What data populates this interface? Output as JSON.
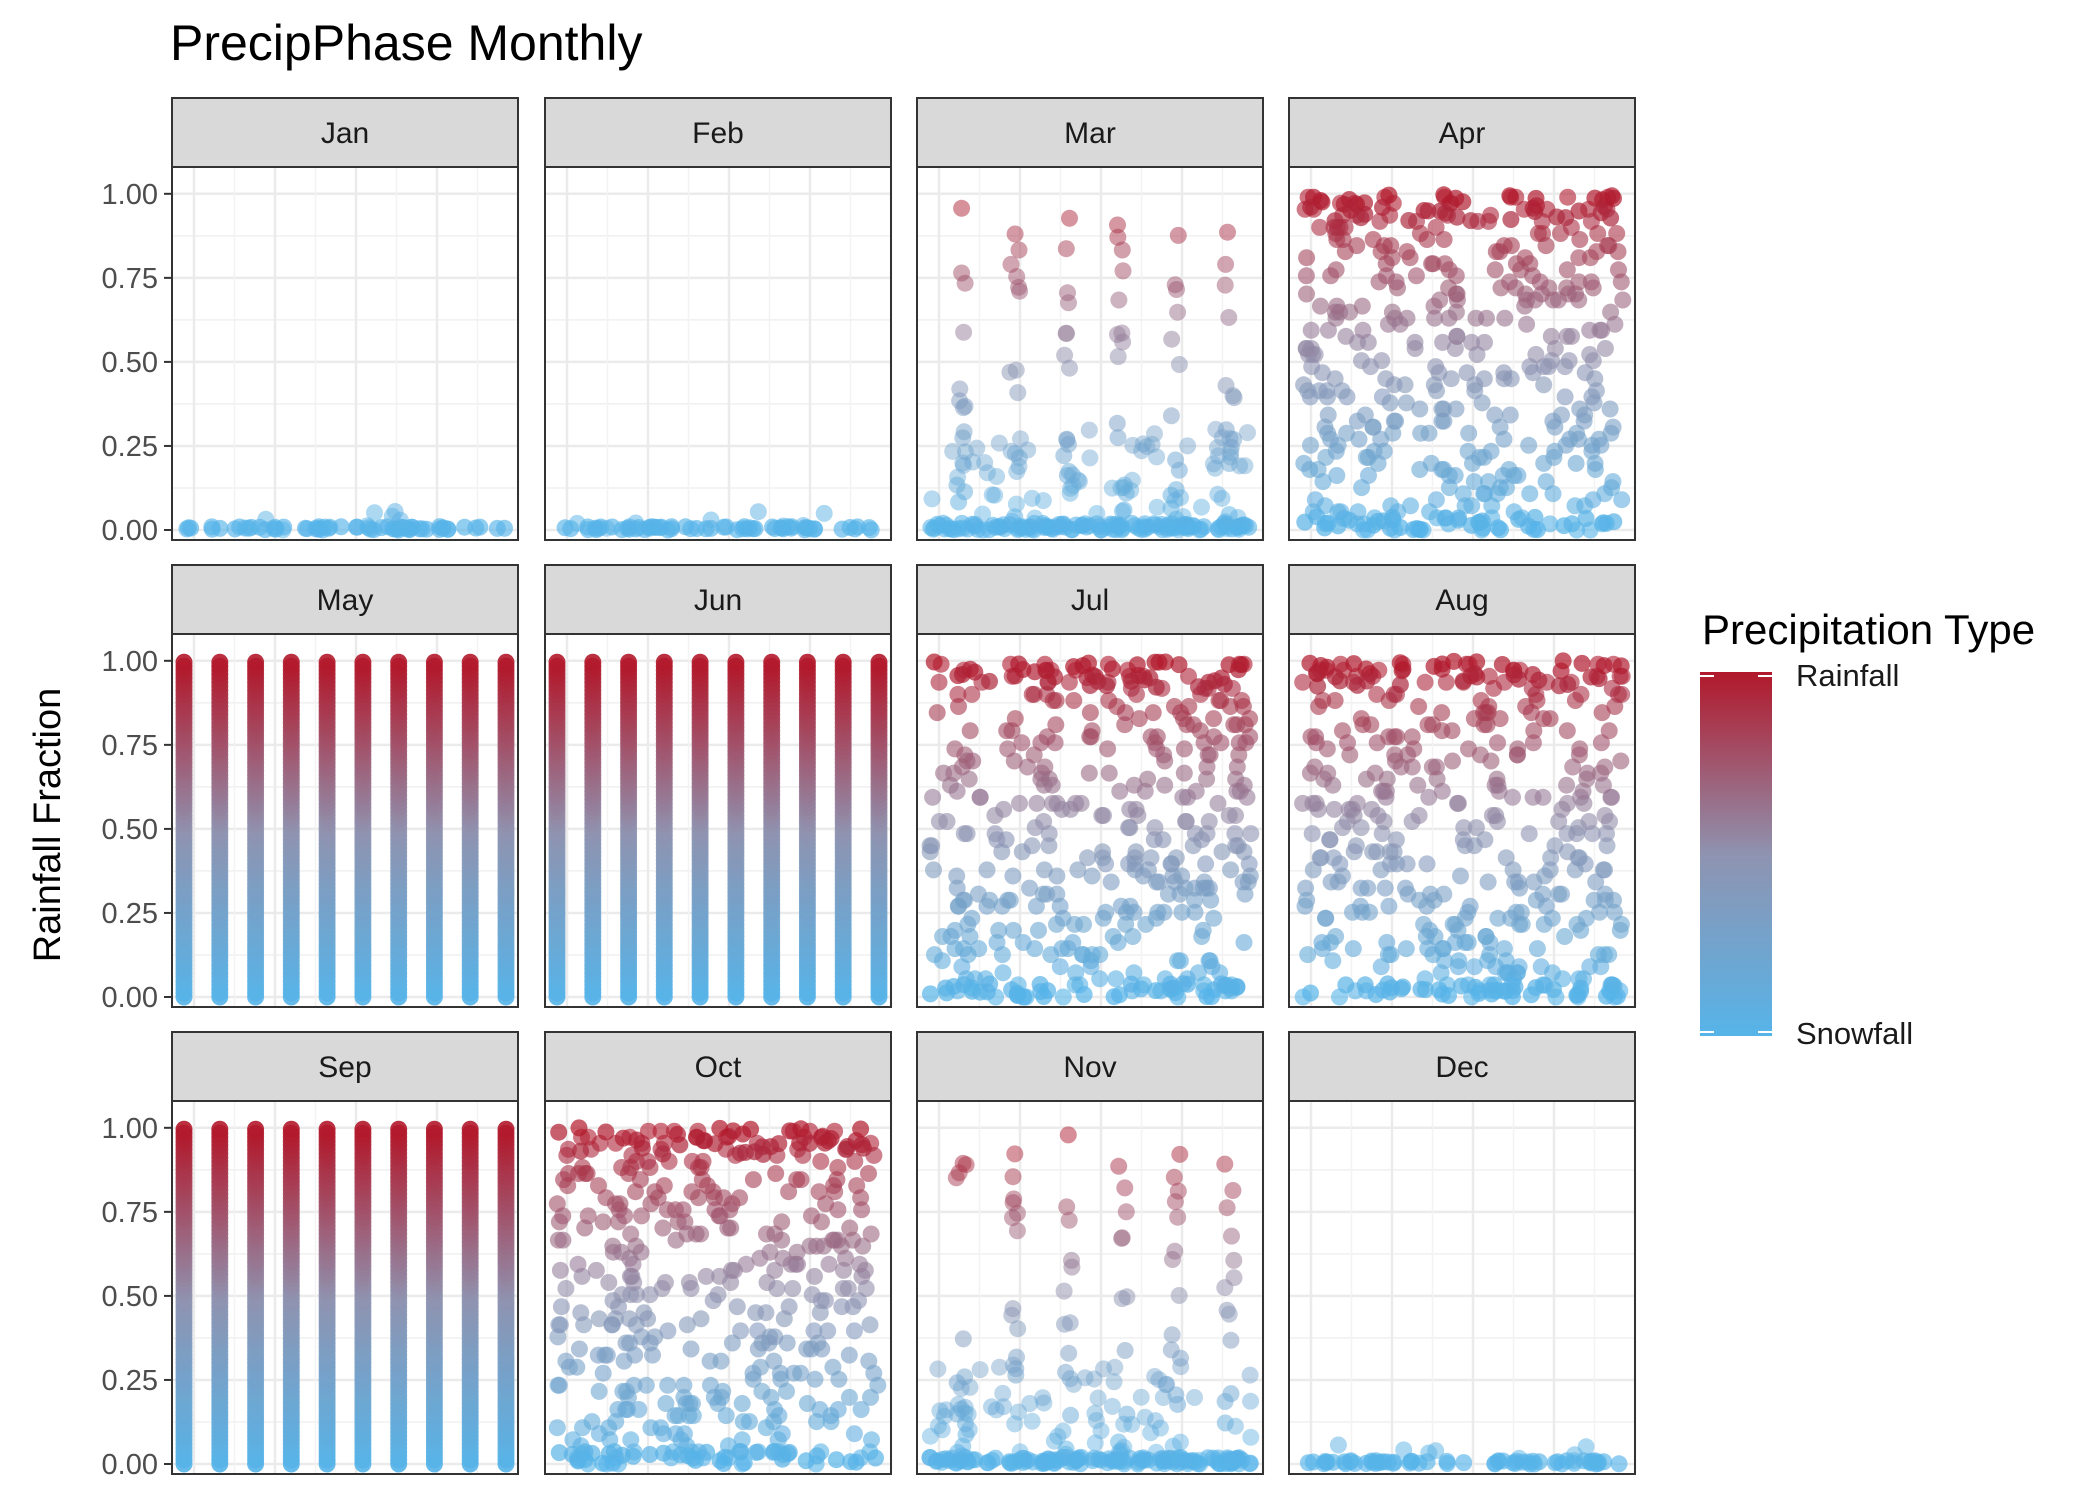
{
  "chart_data": {
    "type": "scatter",
    "title": "PrecipPhase Monthly",
    "xlabel": "",
    "ylabel": "Rainfall Fraction",
    "ylim": [
      0,
      1.05
    ],
    "yticks": [
      "0.00",
      "0.25",
      "0.50",
      "0.75",
      "1.00"
    ],
    "facets": [
      "Jan",
      "Feb",
      "Mar",
      "Apr",
      "May",
      "Jun",
      "Jul",
      "Aug",
      "Sep",
      "Oct",
      "Nov",
      "Dec"
    ],
    "facet_density": {
      "Jan": "near-zero",
      "Feb": "near-zero",
      "Mar": "sparse",
      "Apr": "dense",
      "May": "full",
      "Jun": "full",
      "Jul": "dense",
      "Aug": "dense",
      "Sep": "full",
      "Oct": "dense",
      "Nov": "sparse",
      "Dec": "near-zero"
    },
    "legend": {
      "title": "Precipitation Type",
      "high_label": "Rainfall",
      "low_label": "Snowfall",
      "high_color": "#B2182B",
      "low_color": "#56B4E9",
      "position": "right"
    },
    "grid": true
  }
}
